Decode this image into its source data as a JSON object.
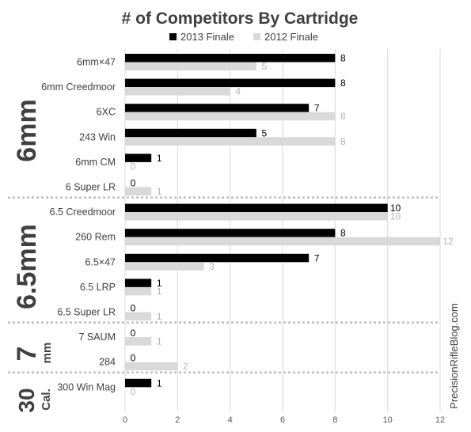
{
  "colors": {
    "series_2013": "#000000",
    "series_2012": "#d9d9d9",
    "grid": "#d9d9d9",
    "separator": "#bfbfbf",
    "text": "#404040"
  },
  "watermark": "PrecisionRifleBlog.com",
  "chart_data": {
    "type": "bar",
    "orientation": "horizontal",
    "title": "# of Competitors By Cartridge",
    "legend_position": "top",
    "xlim": [
      0,
      12
    ],
    "x_ticks": [
      0,
      2,
      4,
      6,
      8,
      10,
      12
    ],
    "grid": true,
    "groups": [
      {
        "label": "6mm",
        "categories": [
          "6mm×47",
          "6mm Creedmoor",
          "6XC",
          "243 Win",
          "6mm CM",
          "6 Super LR"
        ]
      },
      {
        "label": "6.5mm",
        "categories": [
          "6.5 Creedmoor",
          "260 Rem",
          "6.5×47",
          "6.5 LRP",
          "6.5 Super LR"
        ]
      },
      {
        "label": "7",
        "sublabel": "mm",
        "categories": [
          "7 SAUM",
          "284"
        ]
      },
      {
        "label": "30",
        "sublabel": "Cal.",
        "categories": [
          "300 Win Mag"
        ]
      }
    ],
    "categories": [
      "6mm×47",
      "6mm Creedmoor",
      "6XC",
      "243 Win",
      "6mm CM",
      "6 Super LR",
      "6.5 Creedmoor",
      "260 Rem",
      "6.5×47",
      "6.5 LRP",
      "6.5 Super LR",
      "7 SAUM",
      "284",
      "300 Win Mag"
    ],
    "series": [
      {
        "name": "2013 Finale",
        "values": [
          8,
          8,
          7,
          5,
          1,
          0,
          10,
          8,
          7,
          1,
          0,
          0,
          0,
          1
        ]
      },
      {
        "name": "2012 Finale",
        "values": [
          5,
          4,
          8,
          8,
          0,
          1,
          10,
          12,
          3,
          1,
          1,
          1,
          2,
          0
        ]
      }
    ]
  }
}
